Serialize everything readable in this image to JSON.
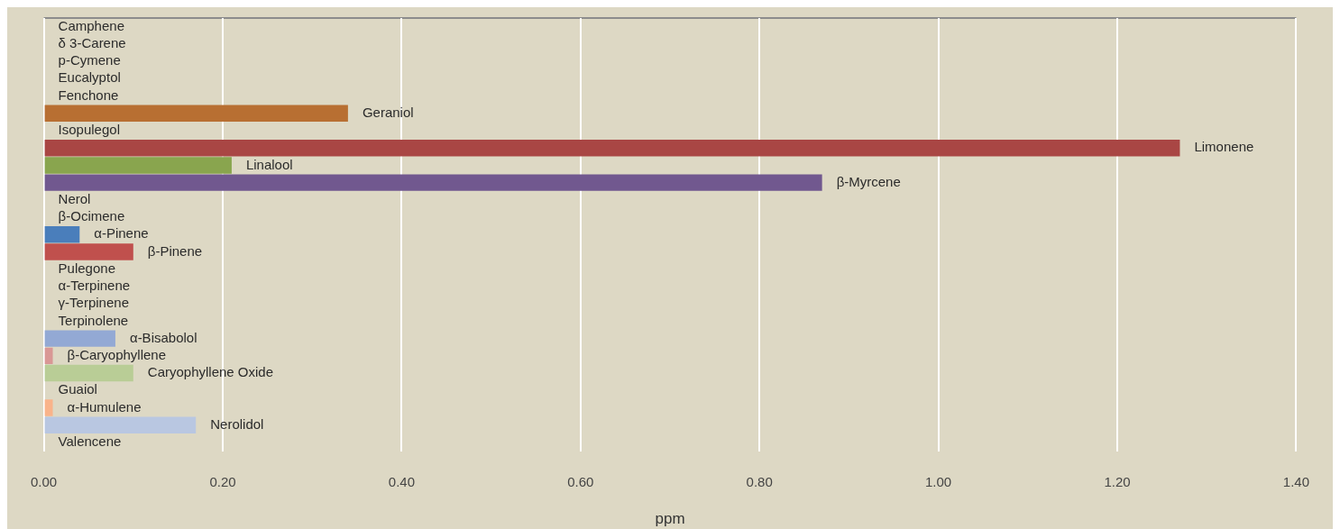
{
  "chart_data": {
    "type": "bar",
    "orientation": "horizontal",
    "xlabel": "ppm",
    "categories": [
      "Camphene",
      "δ 3-Carene",
      "p-Cymene",
      "Eucalyptol",
      "Fenchone",
      "Geraniol",
      "Isopulegol",
      "Limonene",
      "Linalool",
      "β-Myrcene",
      "Nerol",
      "β-Ocimene",
      "α-Pinene",
      "β-Pinene",
      "Pulegone",
      "α-Terpinene",
      "γ-Terpinene",
      "Terpinolene",
      "α-Bisabolol",
      "β-Caryophyllene",
      "Caryophyllene Oxide",
      "Guaiol",
      "α-Humulene",
      "Nerolidol",
      "Valencene"
    ],
    "values": [
      0,
      0,
      0,
      0,
      0,
      0.34,
      0,
      1.27,
      0.21,
      0.87,
      0,
      0,
      0.04,
      0.1,
      0,
      0,
      0,
      0,
      0.08,
      0.01,
      0.1,
      0,
      0.01,
      0.17,
      0
    ],
    "colors": [
      "#b86f32",
      "#b86f32",
      "#b86f32",
      "#b86f32",
      "#b86f32",
      "#b86f32",
      "#a94644",
      "#a94644",
      "#89a54e",
      "#71588f",
      "#4a7ebb",
      "#4a7ebb",
      "#4a7ebb",
      "#c0504d",
      "#c0504d",
      "#c0504d",
      "#c0504d",
      "#93a9d4",
      "#93a9d4",
      "#d99795",
      "#b9cd96",
      "#f9b38a",
      "#f9b38a",
      "#b9c7e1",
      "#b9c7e1"
    ],
    "xlim": [
      0,
      1.4
    ],
    "xticks": [
      {
        "value": 0,
        "label": "0.00"
      },
      {
        "value": 0.2,
        "label": "0.20"
      },
      {
        "value": 0.4,
        "label": "0.40"
      },
      {
        "value": 0.6,
        "label": "0.60"
      },
      {
        "value": 0.8,
        "label": "0.80"
      },
      {
        "value": 1.0,
        "label": "1.00"
      },
      {
        "value": 1.2,
        "label": "1.20"
      },
      {
        "value": 1.4,
        "label": "1.40"
      }
    ],
    "grid": "x",
    "legend": false
  }
}
